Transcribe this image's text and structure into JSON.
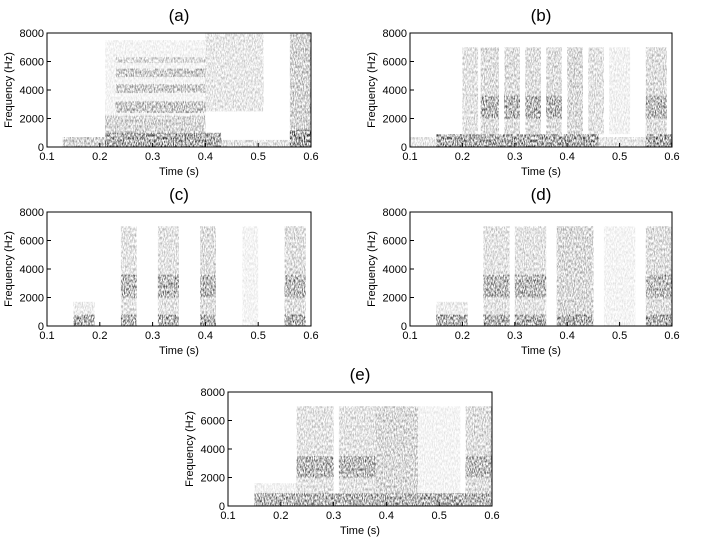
{
  "chart_data": [
    {
      "type": "heatmap",
      "title": "(a)",
      "xlabel": "Time (s)",
      "ylabel": "Frequency (Hz)",
      "xlim": [
        0.1,
        0.6
      ],
      "ylim": [
        0,
        8000
      ],
      "xticks": [
        "0.1",
        "0.2",
        "0.3",
        "0.4",
        "0.5",
        "0.6"
      ],
      "yticks": [
        "0",
        "2000",
        "4000",
        "6000",
        "8000"
      ],
      "cells": [
        {
          "t0": 0.13,
          "t1": 0.21,
          "f0": 0,
          "f1": 700,
          "v": 0.45
        },
        {
          "t0": 0.21,
          "t1": 0.43,
          "f0": 0,
          "f1": 1000,
          "v": 0.85
        },
        {
          "t0": 0.43,
          "t1": 0.56,
          "f0": 0,
          "f1": 500,
          "v": 0.3
        },
        {
          "t0": 0.21,
          "t1": 0.4,
          "f0": 1000,
          "f1": 2200,
          "v": 0.35
        },
        {
          "t0": 0.23,
          "t1": 0.4,
          "f0": 2400,
          "f1": 3200,
          "v": 0.5
        },
        {
          "t0": 0.23,
          "t1": 0.4,
          "f0": 3800,
          "f1": 4400,
          "v": 0.45
        },
        {
          "t0": 0.23,
          "t1": 0.4,
          "f0": 4900,
          "f1": 5500,
          "v": 0.45
        },
        {
          "t0": 0.23,
          "t1": 0.4,
          "f0": 5900,
          "f1": 6300,
          "v": 0.3
        },
        {
          "t0": 0.21,
          "t1": 0.4,
          "f0": 1000,
          "f1": 7500,
          "v": 0.12
        },
        {
          "t0": 0.4,
          "t1": 0.51,
          "f0": 2500,
          "f1": 8000,
          "v": 0.25
        },
        {
          "t0": 0.56,
          "t1": 0.6,
          "f0": 0,
          "f1": 8000,
          "v": 0.45
        },
        {
          "t0": 0.56,
          "t1": 0.6,
          "f0": 0,
          "f1": 1200,
          "v": 0.85
        }
      ]
    },
    {
      "type": "heatmap",
      "title": "(b)",
      "xlabel": "Time (s)",
      "ylabel": "Frequency (Hz)",
      "xlim": [
        0.1,
        0.6
      ],
      "ylim": [
        0,
        8000
      ],
      "xticks": [
        "0.1",
        "0.2",
        "0.3",
        "0.4",
        "0.5",
        "0.6"
      ],
      "yticks": [
        "0",
        "2000",
        "4000",
        "6000",
        "8000"
      ],
      "cells": [
        {
          "t0": 0.1,
          "t1": 0.6,
          "f0": 0,
          "f1": 700,
          "v": 0.25
        },
        {
          "t0": 0.15,
          "t1": 0.46,
          "f0": 0,
          "f1": 900,
          "v": 0.8
        },
        {
          "t0": 0.55,
          "t1": 0.6,
          "f0": 0,
          "f1": 900,
          "v": 0.8
        },
        {
          "t0": 0.2,
          "t1": 0.23,
          "f0": 900,
          "f1": 7000,
          "v": 0.3
        },
        {
          "t0": 0.235,
          "t1": 0.27,
          "f0": 900,
          "f1": 7000,
          "v": 0.35
        },
        {
          "t0": 0.235,
          "t1": 0.27,
          "f0": 2000,
          "f1": 3600,
          "v": 0.6
        },
        {
          "t0": 0.28,
          "t1": 0.31,
          "f0": 900,
          "f1": 7000,
          "v": 0.35
        },
        {
          "t0": 0.28,
          "t1": 0.31,
          "f0": 2000,
          "f1": 3600,
          "v": 0.6
        },
        {
          "t0": 0.32,
          "t1": 0.35,
          "f0": 900,
          "f1": 7000,
          "v": 0.35
        },
        {
          "t0": 0.32,
          "t1": 0.35,
          "f0": 2000,
          "f1": 3600,
          "v": 0.6
        },
        {
          "t0": 0.36,
          "t1": 0.39,
          "f0": 900,
          "f1": 7000,
          "v": 0.35
        },
        {
          "t0": 0.36,
          "t1": 0.39,
          "f0": 2000,
          "f1": 3600,
          "v": 0.6
        },
        {
          "t0": 0.4,
          "t1": 0.43,
          "f0": 900,
          "f1": 7000,
          "v": 0.4
        },
        {
          "t0": 0.44,
          "t1": 0.47,
          "f0": 900,
          "f1": 7000,
          "v": 0.3
        },
        {
          "t0": 0.48,
          "t1": 0.52,
          "f0": 900,
          "f1": 7000,
          "v": 0.15
        },
        {
          "t0": 0.55,
          "t1": 0.59,
          "f0": 900,
          "f1": 7000,
          "v": 0.35
        },
        {
          "t0": 0.55,
          "t1": 0.59,
          "f0": 2000,
          "f1": 3600,
          "v": 0.55
        }
      ]
    },
    {
      "type": "heatmap",
      "title": "(c)",
      "xlabel": "Time (s)",
      "ylabel": "Frequency (Hz)",
      "xlim": [
        0.1,
        0.6
      ],
      "ylim": [
        0,
        8000
      ],
      "xticks": [
        "0.1",
        "0.2",
        "0.3",
        "0.4",
        "0.5",
        "0.6"
      ],
      "yticks": [
        "0",
        "2000",
        "4000",
        "6000",
        "8000"
      ],
      "cells": [
        {
          "t0": 0.15,
          "t1": 0.19,
          "f0": 0,
          "f1": 800,
          "v": 0.8
        },
        {
          "t0": 0.15,
          "t1": 0.19,
          "f0": 800,
          "f1": 1700,
          "v": 0.2
        },
        {
          "t0": 0.24,
          "t1": 0.27,
          "f0": 0,
          "f1": 800,
          "v": 0.8
        },
        {
          "t0": 0.24,
          "t1": 0.27,
          "f0": 800,
          "f1": 7000,
          "v": 0.3
        },
        {
          "t0": 0.24,
          "t1": 0.27,
          "f0": 2000,
          "f1": 3600,
          "v": 0.6
        },
        {
          "t0": 0.31,
          "t1": 0.35,
          "f0": 0,
          "f1": 800,
          "v": 0.8
        },
        {
          "t0": 0.31,
          "t1": 0.35,
          "f0": 800,
          "f1": 7000,
          "v": 0.3
        },
        {
          "t0": 0.31,
          "t1": 0.35,
          "f0": 2000,
          "f1": 3600,
          "v": 0.6
        },
        {
          "t0": 0.39,
          "t1": 0.42,
          "f0": 0,
          "f1": 800,
          "v": 0.8
        },
        {
          "t0": 0.39,
          "t1": 0.42,
          "f0": 800,
          "f1": 7000,
          "v": 0.35
        },
        {
          "t0": 0.39,
          "t1": 0.42,
          "f0": 2000,
          "f1": 3600,
          "v": 0.55
        },
        {
          "t0": 0.47,
          "t1": 0.5,
          "f0": 0,
          "f1": 7000,
          "v": 0.12
        },
        {
          "t0": 0.55,
          "t1": 0.59,
          "f0": 0,
          "f1": 800,
          "v": 0.8
        },
        {
          "t0": 0.55,
          "t1": 0.59,
          "f0": 800,
          "f1": 7000,
          "v": 0.35
        },
        {
          "t0": 0.55,
          "t1": 0.59,
          "f0": 2000,
          "f1": 3600,
          "v": 0.55
        }
      ]
    },
    {
      "type": "heatmap",
      "title": "(d)",
      "xlabel": "Time (s)",
      "ylabel": "Frequency (Hz)",
      "xlim": [
        0.1,
        0.6
      ],
      "ylim": [
        0,
        8000
      ],
      "xticks": [
        "0.1",
        "0.2",
        "0.3",
        "0.4",
        "0.5",
        "0.6"
      ],
      "yticks": [
        "0",
        "2000",
        "4000",
        "6000",
        "8000"
      ],
      "cells": [
        {
          "t0": 0.15,
          "t1": 0.21,
          "f0": 0,
          "f1": 800,
          "v": 0.8
        },
        {
          "t0": 0.15,
          "t1": 0.21,
          "f0": 800,
          "f1": 1700,
          "v": 0.2
        },
        {
          "t0": 0.24,
          "t1": 0.29,
          "f0": 0,
          "f1": 800,
          "v": 0.8
        },
        {
          "t0": 0.24,
          "t1": 0.29,
          "f0": 800,
          "f1": 7000,
          "v": 0.3
        },
        {
          "t0": 0.24,
          "t1": 0.29,
          "f0": 2000,
          "f1": 3600,
          "v": 0.6
        },
        {
          "t0": 0.3,
          "t1": 0.36,
          "f0": 0,
          "f1": 800,
          "v": 0.8
        },
        {
          "t0": 0.3,
          "t1": 0.36,
          "f0": 800,
          "f1": 7000,
          "v": 0.3
        },
        {
          "t0": 0.3,
          "t1": 0.36,
          "f0": 2000,
          "f1": 3600,
          "v": 0.6
        },
        {
          "t0": 0.38,
          "t1": 0.45,
          "f0": 0,
          "f1": 800,
          "v": 0.8
        },
        {
          "t0": 0.38,
          "t1": 0.45,
          "f0": 800,
          "f1": 7000,
          "v": 0.4
        },
        {
          "t0": 0.47,
          "t1": 0.53,
          "f0": 0,
          "f1": 7000,
          "v": 0.12
        },
        {
          "t0": 0.55,
          "t1": 0.6,
          "f0": 0,
          "f1": 800,
          "v": 0.8
        },
        {
          "t0": 0.55,
          "t1": 0.6,
          "f0": 800,
          "f1": 7000,
          "v": 0.35
        },
        {
          "t0": 0.55,
          "t1": 0.6,
          "f0": 2000,
          "f1": 3600,
          "v": 0.5
        }
      ]
    },
    {
      "type": "heatmap",
      "title": "(e)",
      "xlabel": "Time (s)",
      "ylabel": "Frequency (Hz)",
      "xlim": [
        0.1,
        0.6
      ],
      "ylim": [
        0,
        8000
      ],
      "xticks": [
        "0.1",
        "0.2",
        "0.3",
        "0.4",
        "0.5",
        "0.6"
      ],
      "yticks": [
        "0",
        "2000",
        "4000",
        "6000",
        "8000"
      ],
      "cells": [
        {
          "t0": 0.15,
          "t1": 0.6,
          "f0": 0,
          "f1": 900,
          "v": 0.75
        },
        {
          "t0": 0.15,
          "t1": 0.23,
          "f0": 900,
          "f1": 1600,
          "v": 0.15
        },
        {
          "t0": 0.23,
          "t1": 0.3,
          "f0": 900,
          "f1": 7000,
          "v": 0.3
        },
        {
          "t0": 0.23,
          "t1": 0.3,
          "f0": 2000,
          "f1": 3500,
          "v": 0.6
        },
        {
          "t0": 0.31,
          "t1": 0.38,
          "f0": 900,
          "f1": 7000,
          "v": 0.3
        },
        {
          "t0": 0.31,
          "t1": 0.38,
          "f0": 2000,
          "f1": 3500,
          "v": 0.6
        },
        {
          "t0": 0.38,
          "t1": 0.46,
          "f0": 900,
          "f1": 7000,
          "v": 0.4
        },
        {
          "t0": 0.46,
          "t1": 0.54,
          "f0": 0,
          "f1": 7000,
          "v": 0.12
        },
        {
          "t0": 0.55,
          "t1": 0.6,
          "f0": 900,
          "f1": 7000,
          "v": 0.35
        },
        {
          "t0": 0.55,
          "t1": 0.6,
          "f0": 2000,
          "f1": 3500,
          "v": 0.5
        }
      ]
    }
  ]
}
